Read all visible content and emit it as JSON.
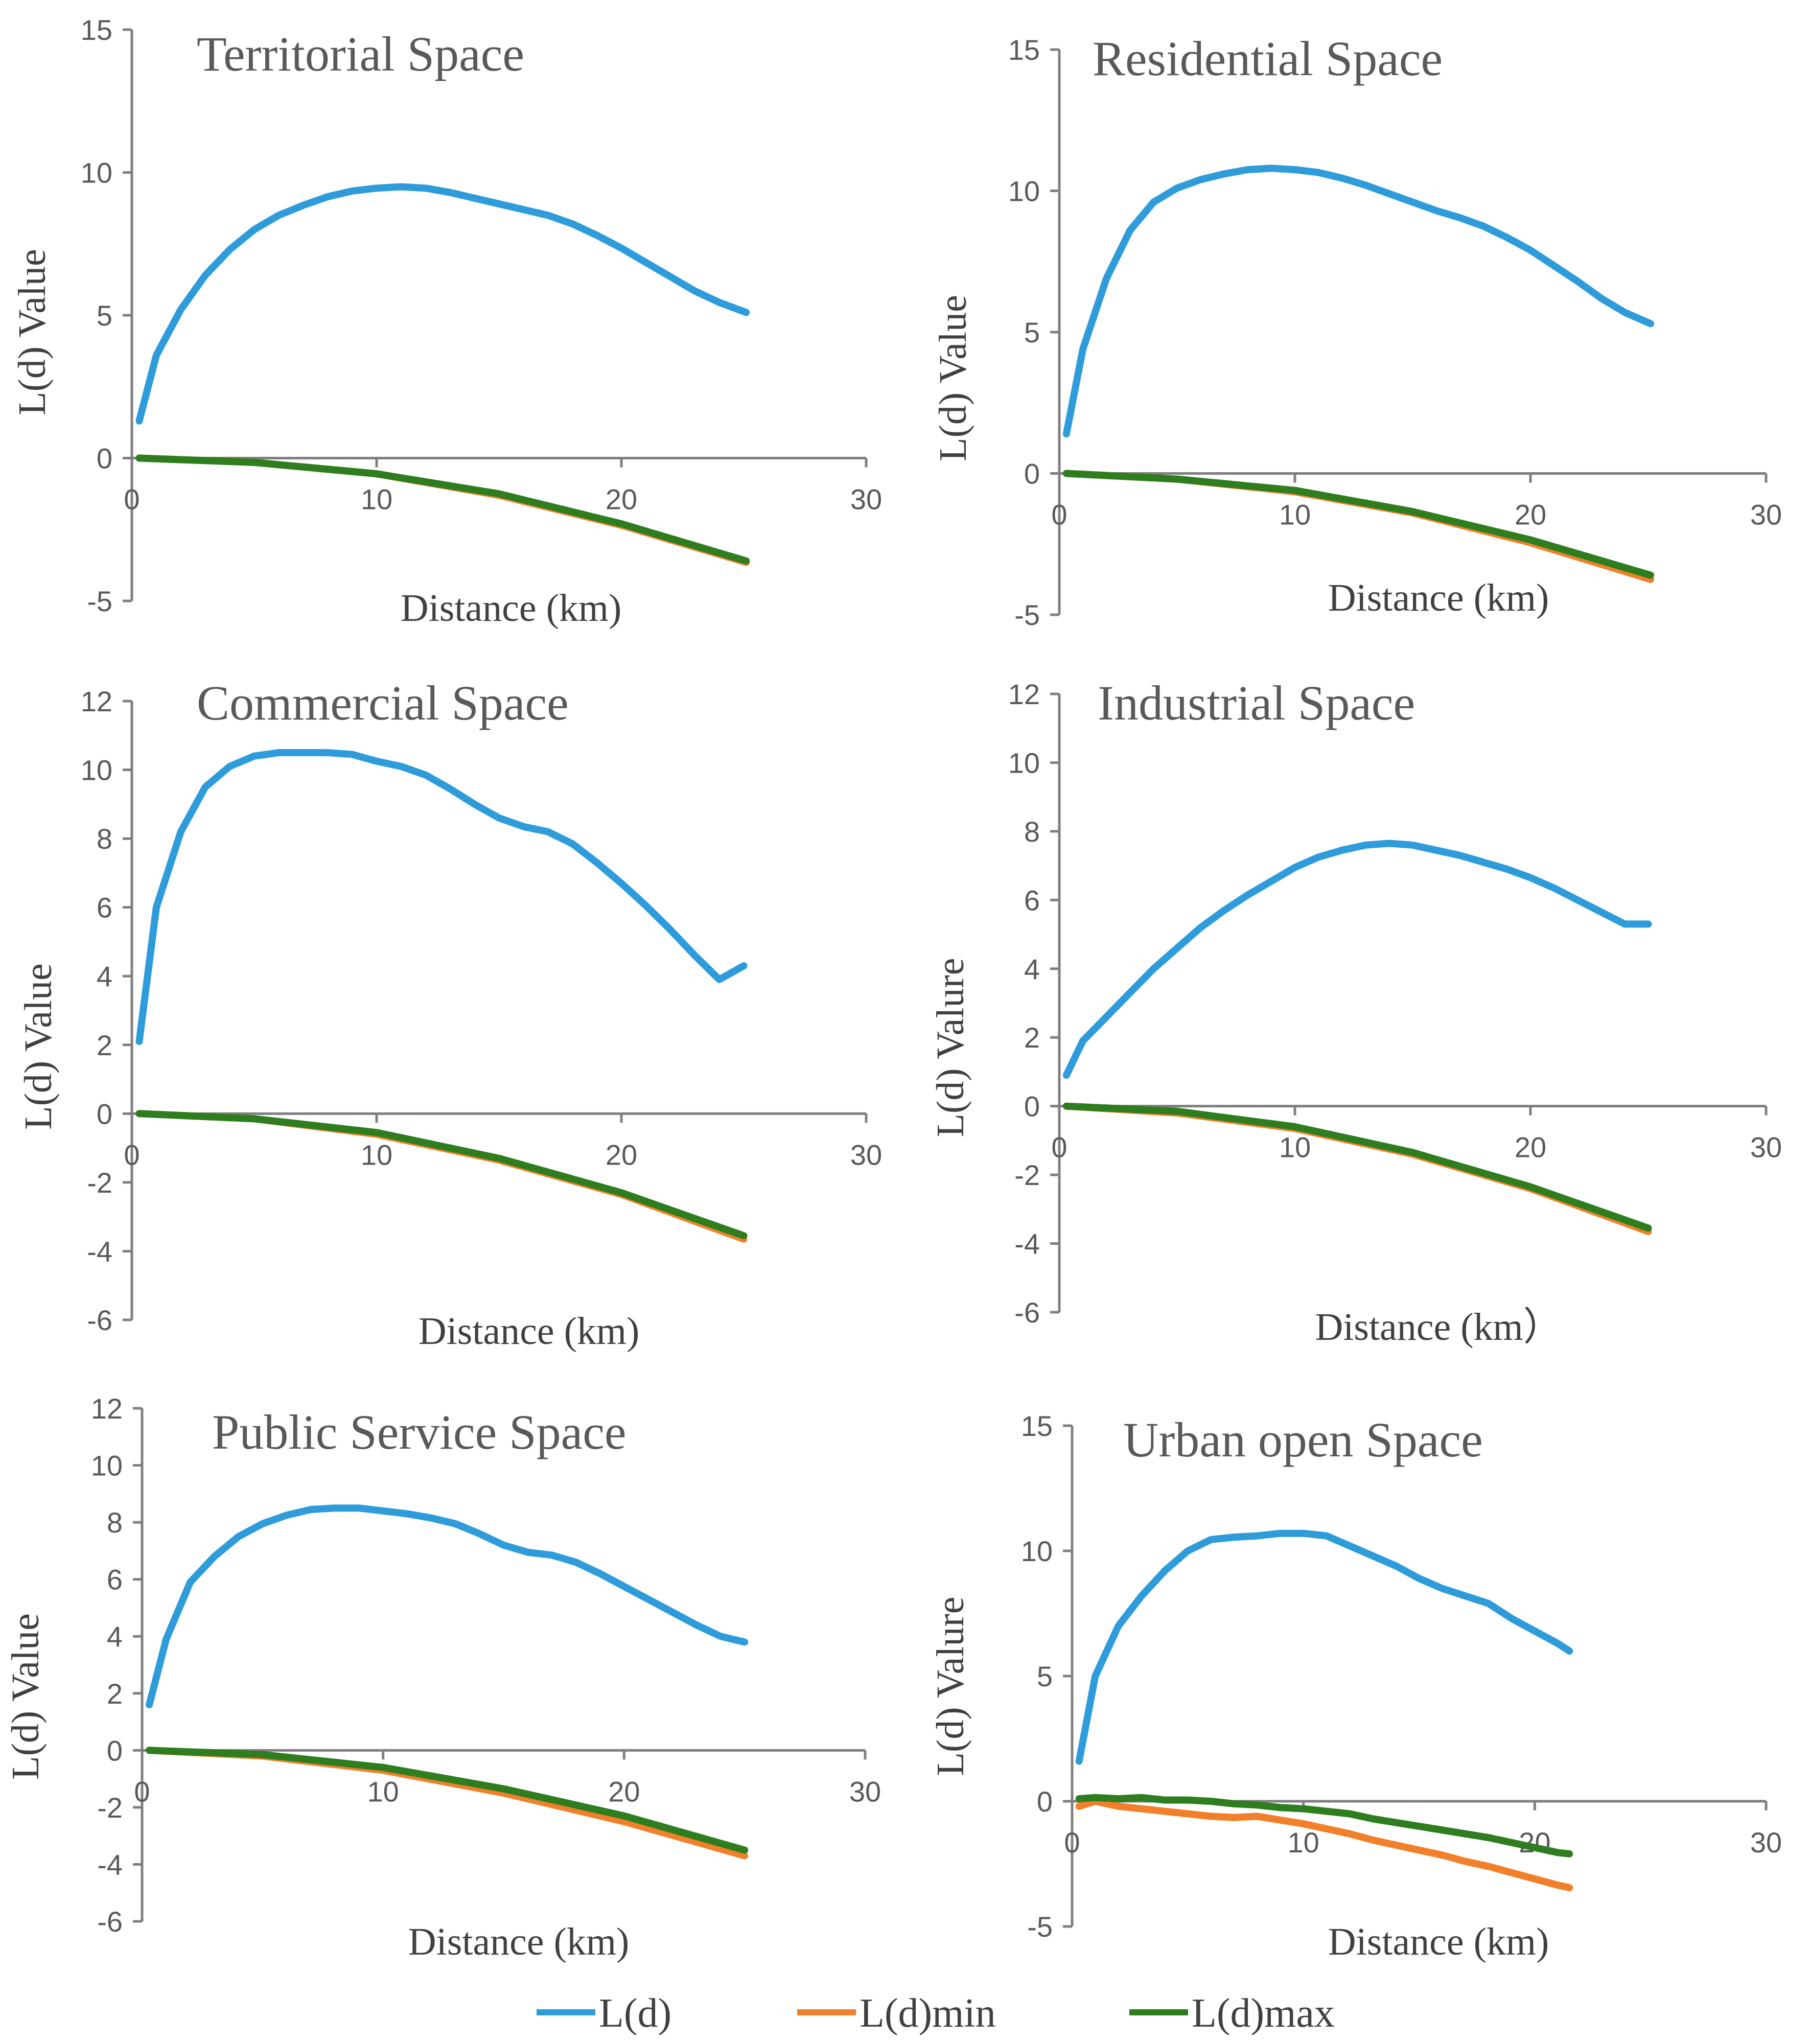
{
  "colors": {
    "ld": "#2E9BDB",
    "ldmin": "#F27F2A",
    "ldmax": "#2E7D1F"
  },
  "legend": [
    {
      "name": "L(d)",
      "color": "#2E9BDB"
    },
    {
      "name": "L(d)min",
      "color": "#F27F2A"
    },
    {
      "name": "L(d)max",
      "color": "#2E7D1F"
    }
  ],
  "chart_data": [
    {
      "type": "line",
      "title": "Territorial Space",
      "xlabel": "Distance (km)",
      "ylabel": "L(d) Value",
      "xlim": [
        0,
        30
      ],
      "ylim": [
        -5,
        15
      ],
      "xticks": [
        "0",
        "10",
        "20",
        "30"
      ],
      "yticks": [
        "-5",
        "0",
        "5",
        "10",
        "15"
      ],
      "series": [
        {
          "name": "L(d)",
          "x": [
            0.3,
            1,
            2,
            3,
            4,
            5,
            6,
            7,
            8,
            9,
            10,
            11,
            12,
            13,
            14,
            15,
            16,
            17,
            18,
            19,
            20,
            21,
            22,
            23,
            24,
            25.1
          ],
          "y": [
            1.3,
            3.6,
            5.2,
            6.4,
            7.3,
            8.0,
            8.5,
            8.85,
            9.15,
            9.35,
            9.45,
            9.5,
            9.45,
            9.3,
            9.1,
            8.9,
            8.7,
            8.5,
            8.2,
            7.8,
            7.35,
            6.85,
            6.35,
            5.85,
            5.45,
            5.1
          ]
        },
        {
          "name": "L(d)min",
          "x": [
            0.3,
            5,
            10,
            15,
            20,
            25.1
          ],
          "y": [
            0,
            -0.15,
            -0.55,
            -1.3,
            -2.35,
            -3.65
          ]
        },
        {
          "name": "L(d)max",
          "x": [
            0.3,
            5,
            10,
            15,
            20,
            25.1
          ],
          "y": [
            0,
            -0.15,
            -0.55,
            -1.25,
            -2.3,
            -3.6
          ]
        }
      ]
    },
    {
      "type": "line",
      "title": "Residential Space",
      "xlabel": "Distance (km)",
      "ylabel": "L(d) Value",
      "xlim": [
        0,
        30
      ],
      "ylim": [
        -5,
        15
      ],
      "xticks": [
        "0",
        "10",
        "20",
        "30"
      ],
      "yticks": [
        "-5",
        "0",
        "5",
        "10",
        "15"
      ],
      "series": [
        {
          "name": "L(d)",
          "x": [
            0.3,
            1,
            2,
            3,
            4,
            5,
            6,
            7,
            8,
            9,
            10,
            11,
            12,
            13,
            14,
            15,
            16,
            17,
            18,
            19,
            20,
            21,
            22,
            23,
            24,
            25.1
          ],
          "y": [
            1.4,
            4.4,
            6.9,
            8.6,
            9.6,
            10.1,
            10.4,
            10.6,
            10.75,
            10.8,
            10.75,
            10.65,
            10.45,
            10.2,
            9.9,
            9.6,
            9.3,
            9.05,
            8.75,
            8.35,
            7.9,
            7.35,
            6.8,
            6.2,
            5.7,
            5.3
          ]
        },
        {
          "name": "L(d)min",
          "x": [
            0.3,
            5,
            10,
            15,
            20,
            25.1
          ],
          "y": [
            0,
            -0.2,
            -0.65,
            -1.4,
            -2.45,
            -3.75
          ]
        },
        {
          "name": "L(d)max",
          "x": [
            0.3,
            5,
            10,
            15,
            20,
            25.1
          ],
          "y": [
            0,
            -0.2,
            -0.6,
            -1.35,
            -2.35,
            -3.6
          ]
        }
      ]
    },
    {
      "type": "line",
      "title": "Commercial Space",
      "xlabel": "Distance (km)",
      "ylabel": "L(d) Value",
      "xlim": [
        0,
        30
      ],
      "ylim": [
        -6,
        12
      ],
      "xticks": [
        "0",
        "10",
        "20",
        "30"
      ],
      "yticks": [
        "-6",
        "-4",
        "-2",
        "0",
        "2",
        "4",
        "6",
        "8",
        "10",
        "12"
      ],
      "series": [
        {
          "name": "L(d)",
          "x": [
            0.3,
            1,
            2,
            3,
            4,
            5,
            6,
            7,
            8,
            9,
            10,
            11,
            12,
            13,
            14,
            15,
            16,
            17,
            18,
            19,
            20,
            21,
            22,
            23,
            24,
            25
          ],
          "y": [
            2.1,
            6.0,
            8.2,
            9.5,
            10.1,
            10.4,
            10.5,
            10.5,
            10.5,
            10.45,
            10.25,
            10.1,
            9.85,
            9.45,
            9.0,
            8.6,
            8.35,
            8.2,
            7.85,
            7.3,
            6.7,
            6.05,
            5.35,
            4.6,
            3.9,
            4.3
          ]
        },
        {
          "name": "L(d)min",
          "x": [
            0.3,
            5,
            10,
            15,
            20,
            25
          ],
          "y": [
            0,
            -0.15,
            -0.6,
            -1.35,
            -2.35,
            -3.65
          ]
        },
        {
          "name": "L(d)max",
          "x": [
            0.3,
            5,
            10,
            15,
            20,
            25
          ],
          "y": [
            0,
            -0.15,
            -0.55,
            -1.3,
            -2.3,
            -3.55
          ]
        }
      ]
    },
    {
      "type": "line",
      "title": "Industrial Space",
      "xlabel": "Distance (km）",
      "ylabel": "L(d) Valure",
      "xlim": [
        0,
        30
      ],
      "ylim": [
        -6,
        12
      ],
      "xticks": [
        "0",
        "10",
        "20",
        "30"
      ],
      "yticks": [
        "-6",
        "-4",
        "-2",
        "0",
        "2",
        "4",
        "6",
        "8",
        "10",
        "12"
      ],
      "series": [
        {
          "name": "L(d)",
          "x": [
            0.3,
            1,
            2,
            3,
            4,
            5,
            6,
            7,
            8,
            9,
            10,
            11,
            12,
            13,
            14,
            15,
            16,
            17,
            18,
            19,
            20,
            21,
            22,
            23,
            24,
            25
          ],
          "y": [
            0.9,
            1.9,
            2.6,
            3.3,
            4.0,
            4.6,
            5.2,
            5.7,
            6.15,
            6.55,
            6.95,
            7.25,
            7.45,
            7.6,
            7.65,
            7.6,
            7.45,
            7.3,
            7.1,
            6.9,
            6.65,
            6.35,
            6.0,
            5.65,
            5.3,
            5.3
          ]
        },
        {
          "name": "L(d)min",
          "x": [
            0.3,
            5,
            10,
            15,
            20,
            25
          ],
          "y": [
            0,
            -0.2,
            -0.65,
            -1.4,
            -2.4,
            -3.65
          ]
        },
        {
          "name": "L(d)max",
          "x": [
            0.3,
            5,
            10,
            15,
            20,
            25
          ],
          "y": [
            0,
            -0.15,
            -0.6,
            -1.35,
            -2.35,
            -3.55
          ]
        }
      ]
    },
    {
      "type": "line",
      "title": "Public Service Space",
      "xlabel": "Distance (km)",
      "ylabel": "L(d) Value",
      "xlim": [
        0,
        30
      ],
      "ylim": [
        -6,
        12
      ],
      "xticks": [
        "0",
        "10",
        "20",
        "30"
      ],
      "yticks": [
        "-6",
        "-4",
        "-2",
        "0",
        "2",
        "4",
        "6",
        "8",
        "10",
        "12"
      ],
      "series": [
        {
          "name": "L(d)",
          "x": [
            0.3,
            1,
            2,
            3,
            4,
            5,
            6,
            7,
            8,
            9,
            10,
            11,
            12,
            13,
            14,
            15,
            16,
            17,
            18,
            19,
            20,
            21,
            22,
            23,
            24,
            25
          ],
          "y": [
            1.6,
            3.9,
            5.9,
            6.8,
            7.5,
            7.95,
            8.25,
            8.45,
            8.5,
            8.5,
            8.4,
            8.3,
            8.15,
            7.95,
            7.6,
            7.2,
            6.95,
            6.85,
            6.6,
            6.2,
            5.75,
            5.3,
            4.85,
            4.4,
            4.0,
            3.8
          ]
        },
        {
          "name": "L(d)min",
          "x": [
            0.3,
            5,
            10,
            15,
            20,
            25
          ],
          "y": [
            0,
            -0.2,
            -0.7,
            -1.5,
            -2.5,
            -3.7
          ]
        },
        {
          "name": "L(d)max",
          "x": [
            0.3,
            5,
            10,
            15,
            20,
            25
          ],
          "y": [
            0,
            -0.15,
            -0.6,
            -1.35,
            -2.3,
            -3.5
          ]
        }
      ]
    },
    {
      "type": "line",
      "title": "Urban open Space",
      "xlabel": "Distance (km)",
      "ylabel": "L(d) Valure",
      "xlim": [
        0,
        30
      ],
      "ylim": [
        -5,
        15
      ],
      "xticks": [
        "0",
        "10",
        "20",
        "30"
      ],
      "yticks": [
        "-5",
        "0",
        "5",
        "10",
        "15"
      ],
      "series": [
        {
          "name": "L(d)",
          "x": [
            0.3,
            1,
            2,
            3,
            4,
            5,
            6,
            7,
            8,
            9,
            10,
            11,
            12,
            13,
            14,
            15,
            16,
            17,
            18,
            19,
            20,
            21,
            21.5
          ],
          "y": [
            1.6,
            5.0,
            7.0,
            8.2,
            9.2,
            10.0,
            10.45,
            10.55,
            10.6,
            10.7,
            10.7,
            10.6,
            10.2,
            9.8,
            9.4,
            8.9,
            8.5,
            8.2,
            7.9,
            7.3,
            6.8,
            6.3,
            6.0
          ]
        },
        {
          "name": "L(d)min",
          "x": [
            0.3,
            1,
            2,
            3,
            4,
            5,
            6,
            7,
            8,
            9,
            10,
            11,
            12,
            13,
            14,
            15,
            16,
            17,
            18,
            19,
            20,
            21,
            21.5
          ],
          "y": [
            -0.2,
            0,
            -0.2,
            -0.3,
            -0.4,
            -0.5,
            -0.6,
            -0.65,
            -0.6,
            -0.75,
            -0.9,
            -1.1,
            -1.3,
            -1.55,
            -1.75,
            -1.95,
            -2.15,
            -2.4,
            -2.6,
            -2.85,
            -3.1,
            -3.35,
            -3.45
          ]
        },
        {
          "name": "L(d)max",
          "x": [
            0.3,
            1,
            2,
            3,
            4,
            5,
            6,
            7,
            8,
            9,
            10,
            11,
            12,
            13,
            14,
            15,
            16,
            17,
            18,
            19,
            20,
            21,
            21.5
          ],
          "y": [
            0.1,
            0.15,
            0.1,
            0.15,
            0.05,
            0.05,
            0,
            -0.1,
            -0.15,
            -0.25,
            -0.3,
            -0.4,
            -0.5,
            -0.7,
            -0.85,
            -1.0,
            -1.15,
            -1.3,
            -1.45,
            -1.65,
            -1.85,
            -2.05,
            -2.1
          ]
        }
      ]
    }
  ]
}
